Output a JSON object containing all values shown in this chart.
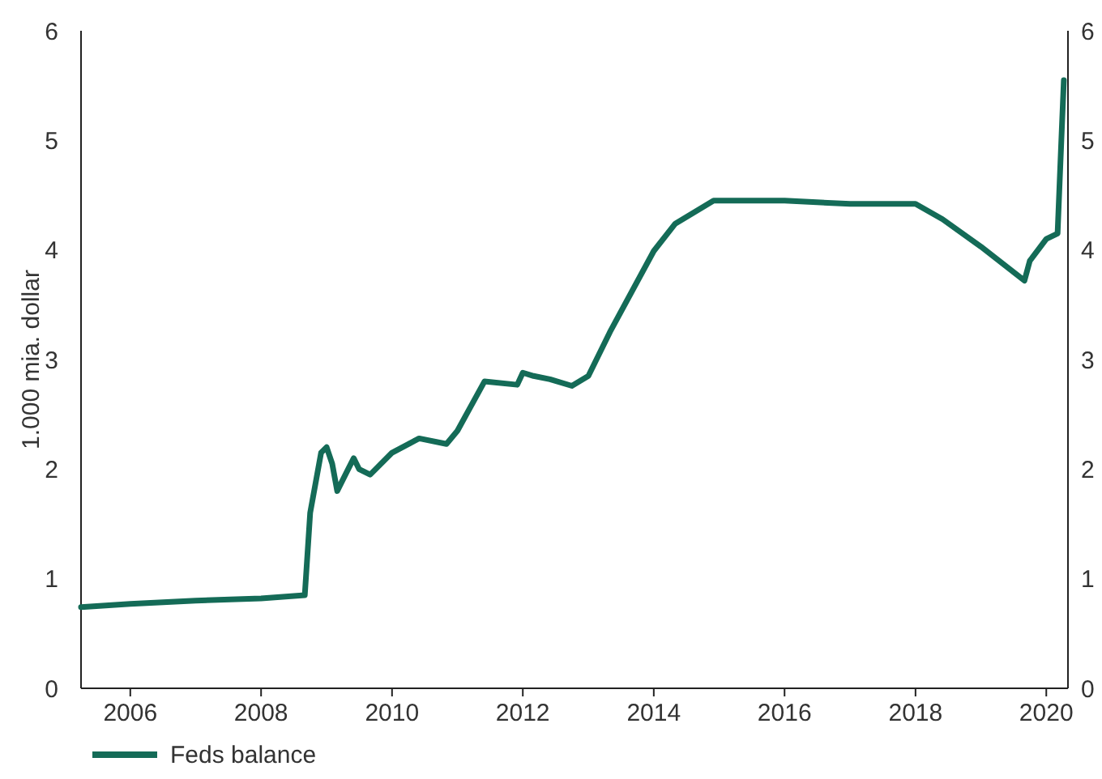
{
  "chart_data": {
    "type": "line",
    "ylabel": "1.000 mia. dollar",
    "xlim": [
      "2005-04",
      "2020-05"
    ],
    "xticks": [
      {
        "value": "2006",
        "label": "2006"
      },
      {
        "value": "2008",
        "label": "2008"
      },
      {
        "value": "2010",
        "label": "2010"
      },
      {
        "value": "2012",
        "label": "2012"
      },
      {
        "value": "2014",
        "label": "2014"
      },
      {
        "value": "2016",
        "label": "2016"
      },
      {
        "value": "2018",
        "label": "2018"
      },
      {
        "value": "2020",
        "label": "2020"
      }
    ],
    "ylim": [
      0,
      6
    ],
    "yticks": [
      0,
      1,
      2,
      3,
      4,
      5,
      6
    ],
    "y2lim": [
      0,
      6
    ],
    "y2ticks": [
      0,
      1,
      2,
      3,
      4,
      5,
      6
    ],
    "grid": false,
    "legend": "bottom left",
    "line_style": "solid",
    "marker": "none",
    "x": [
      "2005-04",
      "2006-01",
      "2007-01",
      "2008-01",
      "2008-09",
      "2008-10",
      "2008-12",
      "2009-01",
      "2009-02",
      "2009-03",
      "2009-05",
      "2009-06",
      "2009-07",
      "2009-09",
      "2010-01",
      "2010-06",
      "2010-11",
      "2011-01",
      "2011-06",
      "2011-12",
      "2012-01",
      "2012-03",
      "2012-06",
      "2012-10",
      "2013-01",
      "2013-05",
      "2014-01",
      "2014-05",
      "2014-12",
      "2016-01",
      "2017-01",
      "2018-01",
      "2018-06",
      "2019-01",
      "2019-09",
      "2019-10",
      "2020-01",
      "2020-03-04",
      "2020-03-25",
      "2020-04-08"
    ],
    "series": [
      {
        "name": "Feds balance",
        "color": "#146b57",
        "values": [
          0.74,
          0.77,
          0.8,
          0.82,
          0.85,
          1.6,
          2.15,
          2.2,
          2.05,
          1.8,
          2.0,
          2.1,
          2.0,
          1.95,
          2.15,
          2.28,
          2.23,
          2.35,
          2.8,
          2.77,
          2.88,
          2.85,
          2.82,
          2.76,
          2.85,
          3.25,
          3.99,
          4.24,
          4.45,
          4.45,
          4.42,
          4.42,
          4.28,
          4.03,
          3.72,
          3.9,
          4.1,
          4.15,
          5.0,
          5.55
        ]
      }
    ]
  }
}
